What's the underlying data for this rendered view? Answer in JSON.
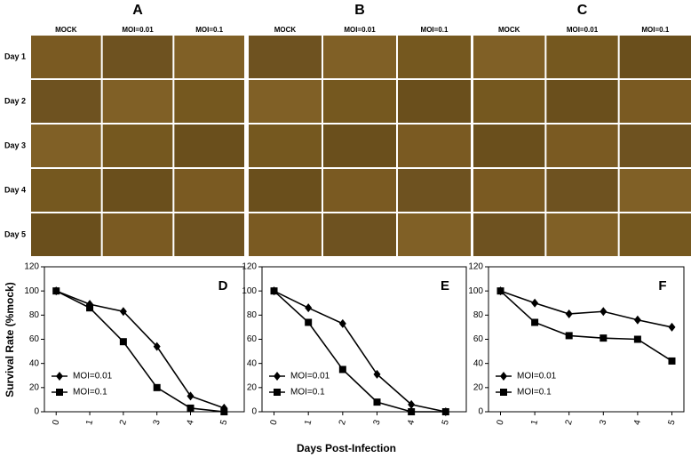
{
  "micrographs": {
    "rows": [
      "Day 1",
      "Day 2",
      "Day 3",
      "Day 4",
      "Day 5"
    ],
    "panels": [
      {
        "label": "A",
        "columns": [
          "MOCK",
          "MOI=0.01",
          "MOI=0.1"
        ]
      },
      {
        "label": "B",
        "columns": [
          "MOCK",
          "MOI=0.01",
          "MOI=0.1"
        ]
      },
      {
        "label": "C",
        "columns": [
          "MOCK",
          "MOI=0.01",
          "MOI=0.1"
        ]
      }
    ]
  },
  "chart_data": [
    {
      "type": "line",
      "panel_label": "D",
      "y_label": "Survival Rate (%mock)",
      "x": [
        0,
        1,
        2,
        3,
        4,
        5
      ],
      "xlim": [
        -0.35,
        5.6
      ],
      "xticks": [
        0,
        1,
        2,
        3,
        4,
        5
      ],
      "ylim": [
        0,
        120
      ],
      "yticks": [
        0,
        20,
        40,
        60,
        80,
        100,
        120
      ],
      "legend": "lower left",
      "series": [
        {
          "name": "MOI=0.01",
          "color": "#000000",
          "marker": "diamond",
          "values": [
            100,
            89,
            83,
            54,
            13,
            3
          ]
        },
        {
          "name": "MOI=0.1",
          "color": "#000000",
          "marker": "square",
          "values": [
            100,
            86,
            58,
            20,
            3,
            0
          ]
        }
      ]
    },
    {
      "type": "line",
      "panel_label": "E",
      "x_label": "Days Post-Infection",
      "x": [
        0,
        1,
        2,
        3,
        4,
        5
      ],
      "xlim": [
        -0.35,
        5.6
      ],
      "xticks": [
        0,
        1,
        2,
        3,
        4,
        5
      ],
      "ylim": [
        0,
        120
      ],
      "yticks": [
        0,
        20,
        40,
        60,
        80,
        100,
        120
      ],
      "legend": "lower left",
      "series": [
        {
          "name": "MOI=0.01",
          "color": "#000000",
          "marker": "diamond",
          "values": [
            100,
            86,
            73,
            31,
            6,
            0
          ]
        },
        {
          "name": "MOI=0.1",
          "color": "#000000",
          "marker": "square",
          "values": [
            100,
            74,
            35,
            8,
            0,
            0
          ]
        }
      ]
    },
    {
      "type": "line",
      "panel_label": "F",
      "x": [
        0,
        1,
        2,
        3,
        4,
        5
      ],
      "xlim": [
        -0.35,
        5.35
      ],
      "xticks": [
        0,
        1,
        2,
        3,
        4,
        5
      ],
      "ylim": [
        0,
        120
      ],
      "yticks": [
        0,
        20,
        40,
        60,
        80,
        100,
        120
      ],
      "legend": "lower left",
      "series": [
        {
          "name": "MOI=0.01",
          "color": "#000000",
          "marker": "diamond",
          "values": [
            100,
            90,
            81,
            83,
            76,
            70
          ]
        },
        {
          "name": "MOI=0.1",
          "color": "#000000",
          "marker": "square",
          "values": [
            100,
            74,
            63,
            61,
            60,
            42
          ]
        }
      ]
    }
  ]
}
